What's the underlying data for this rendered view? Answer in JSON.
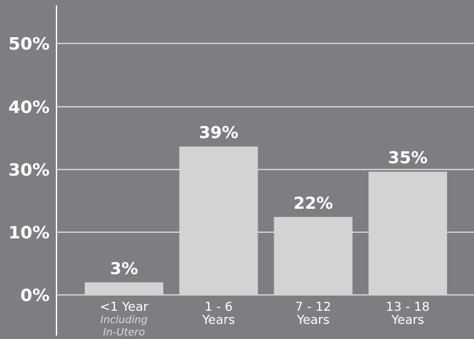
{
  "chart_data": {
    "type": "bar",
    "categories": [
      {
        "line1": "<1 Year",
        "line2": "Including",
        "line3": "In-Utero"
      },
      {
        "line1": "1 - 6",
        "line2": "Years"
      },
      {
        "line1": "7 - 12",
        "line2": "Years"
      },
      {
        "line1": "13 - 18",
        "line2": "Years"
      }
    ],
    "values": [
      3,
      39,
      22,
      35
    ],
    "data_labels": [
      "3%",
      "39%",
      "22%",
      "35%"
    ],
    "y_tick_labels": [
      "0%",
      "10%",
      "30%",
      "40%",
      "50%"
    ],
    "bar_heights_pct_of_axis": [
      5,
      59,
      31,
      49
    ],
    "grid": true,
    "colors": {
      "background": "#7d7e81",
      "bar": "#d3d3d3",
      "text": "#ffffff",
      "subtext": "#d8d8d8"
    }
  }
}
